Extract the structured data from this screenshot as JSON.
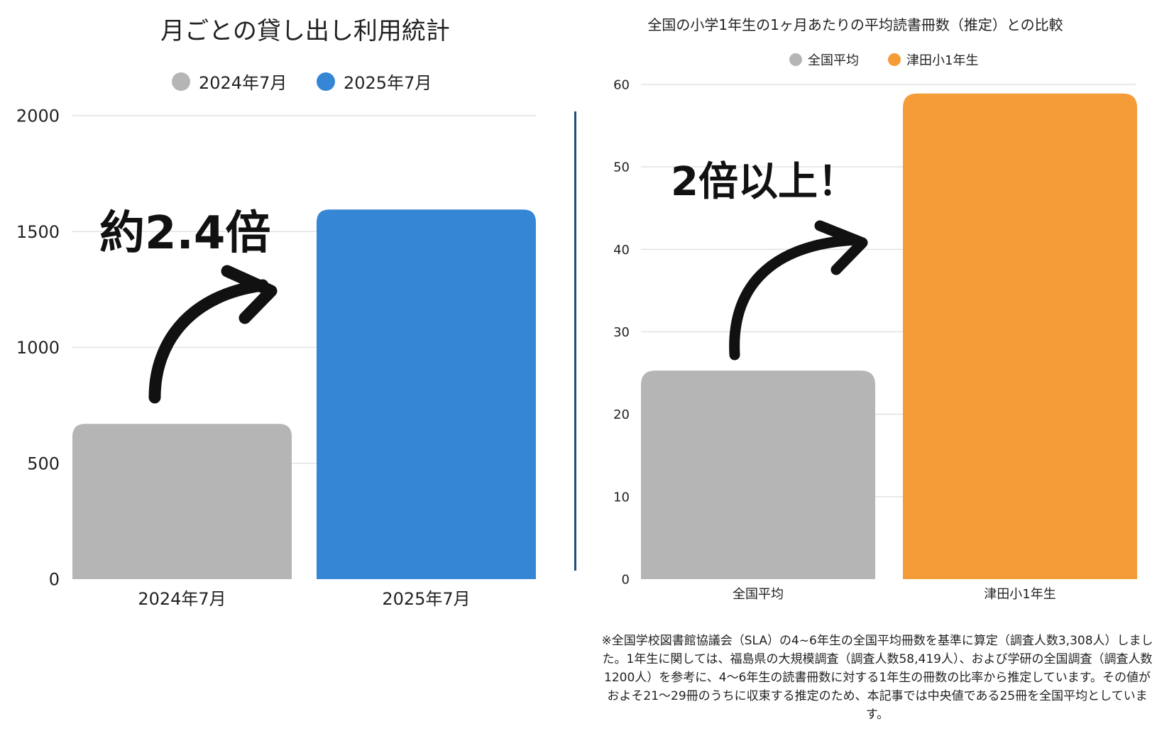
{
  "chart_data": [
    {
      "type": "bar",
      "title": "月ごとの貸し出し利用統計",
      "categories": [
        "2024年7月",
        "2025年7月"
      ],
      "series": [
        {
          "name": "2024年7月",
          "values": [
            670,
            null
          ],
          "color": "#b5b5b5"
        },
        {
          "name": "2025年7月",
          "values": [
            null,
            1595
          ],
          "color": "#3686d6"
        }
      ],
      "values": [
        670,
        1595
      ],
      "ylim": [
        0,
        2000
      ],
      "yticks": [
        0,
        500,
        1000,
        1500,
        2000
      ],
      "grid": true,
      "legend": "top-center",
      "annotation": "約2.4倍"
    },
    {
      "type": "bar",
      "title": "全国の小学1年生の1ヶ月あたりの平均読書冊数（推定）との比較",
      "categories": [
        "全国平均",
        "津田小1年生"
      ],
      "series": [
        {
          "name": "全国平均",
          "values": [
            25.3,
            null
          ],
          "color": "#b5b5b5"
        },
        {
          "name": "津田小1年生",
          "values": [
            null,
            58.9
          ],
          "color": "#f39c38"
        }
      ],
      "values": [
        25.3,
        58.9
      ],
      "ylim": [
        0,
        60
      ],
      "yticks": [
        0,
        10,
        20,
        30,
        40,
        50,
        60
      ],
      "grid": true,
      "legend": "top-center",
      "annotation": "2倍以上！"
    }
  ],
  "footnote": "※全国学校図書館協議会（SLA）の4~6年生の全国平均冊数を基準に算定（調査人数3,308人）しました。1年生に関しては、福島県の大規模調査（調査人数58,419人）、および学研の全国調査（調査人数1200人）を参考に、4〜6年生の読書冊数に対する1年生の冊数の比率から推定しています。その値がおよそ21〜29冊のうちに収束する推定のため、本記事では中央値である25冊を全国平均としています。"
}
